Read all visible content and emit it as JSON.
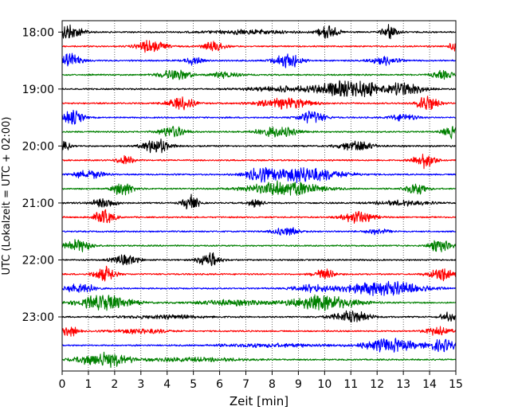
{
  "chart_data": {
    "type": "line",
    "title": "",
    "xlabel": "Zeit  [min]",
    "ylabel": "UTC (Lokalzeit = UTC + 02:00)",
    "xlim": [
      0,
      15
    ],
    "x_ticks": [
      "0",
      "1",
      "2",
      "3",
      "4",
      "5",
      "6",
      "7",
      "8",
      "9",
      "10",
      "11",
      "12",
      "13",
      "14",
      "15"
    ],
    "y_ticks": [
      "18:00",
      "19:00",
      "20:00",
      "21:00",
      "22:00",
      "23:00"
    ],
    "grid": "vertical dotted",
    "line_colors": [
      "#000000",
      "#ff0000",
      "#0000ff",
      "#008000"
    ],
    "series": [
      {
        "start": "18:00",
        "color": "#000000",
        "events": [
          [
            0.3,
            0.9,
            0.5
          ],
          [
            10.1,
            0.8,
            0.4
          ],
          [
            12.5,
            0.9,
            0.3
          ],
          [
            7.0,
            0.25,
            1.5
          ]
        ]
      },
      {
        "start": "18:15",
        "color": "#ff0000",
        "events": [
          [
            3.4,
            0.8,
            0.5
          ],
          [
            5.8,
            0.6,
            0.4
          ],
          [
            15.0,
            0.9,
            0.2
          ]
        ]
      },
      {
        "start": "18:30",
        "color": "#0000ff",
        "events": [
          [
            0.3,
            0.9,
            0.4
          ],
          [
            5.0,
            0.5,
            0.3
          ],
          [
            8.6,
            0.9,
            0.5
          ],
          [
            12.3,
            0.5,
            0.5
          ]
        ]
      },
      {
        "start": "18:45",
        "color": "#008000",
        "events": [
          [
            4.3,
            0.6,
            0.6
          ],
          [
            6.2,
            0.4,
            0.5
          ],
          [
            14.5,
            0.5,
            0.4
          ]
        ]
      },
      {
        "start": "19:00",
        "color": "#000000",
        "events": [
          [
            10.6,
            0.9,
            0.8
          ],
          [
            11.6,
            0.9,
            0.4
          ],
          [
            13.0,
            0.8,
            0.7
          ],
          [
            8.5,
            0.3,
            1.5
          ]
        ]
      },
      {
        "start": "19:15",
        "color": "#ff0000",
        "events": [
          [
            4.5,
            0.8,
            0.5
          ],
          [
            8.5,
            0.6,
            1.0
          ],
          [
            13.9,
            0.9,
            0.4
          ]
        ]
      },
      {
        "start": "19:30",
        "color": "#0000ff",
        "events": [
          [
            0.4,
            0.8,
            0.4
          ],
          [
            9.5,
            0.7,
            0.5
          ],
          [
            13.0,
            0.4,
            0.5
          ]
        ]
      },
      {
        "start": "19:45",
        "color": "#008000",
        "events": [
          [
            4.2,
            0.6,
            0.5
          ],
          [
            8.2,
            0.6,
            0.8
          ],
          [
            14.8,
            0.7,
            0.3
          ]
        ]
      },
      {
        "start": "20:00",
        "color": "#000000",
        "events": [
          [
            3.6,
            0.9,
            0.5
          ],
          [
            11.2,
            0.7,
            0.6
          ],
          [
            0.1,
            0.6,
            0.2
          ]
        ]
      },
      {
        "start": "20:15",
        "color": "#ff0000",
        "events": [
          [
            2.4,
            0.6,
            0.3
          ],
          [
            13.8,
            0.9,
            0.4
          ]
        ]
      },
      {
        "start": "20:30",
        "color": "#0000ff",
        "events": [
          [
            9.2,
            0.9,
            1.4
          ],
          [
            7.5,
            0.6,
            0.5
          ],
          [
            1.0,
            0.5,
            0.6
          ]
        ]
      },
      {
        "start": "20:45",
        "color": "#008000",
        "events": [
          [
            8.5,
            0.9,
            1.3
          ],
          [
            2.3,
            0.8,
            0.4
          ],
          [
            13.5,
            0.7,
            0.4
          ]
        ]
      },
      {
        "start": "21:00",
        "color": "#000000",
        "events": [
          [
            4.9,
            0.9,
            0.3
          ],
          [
            1.6,
            0.5,
            0.5
          ],
          [
            7.4,
            0.5,
            0.3
          ],
          [
            13.0,
            0.3,
            1.0
          ]
        ]
      },
      {
        "start": "21:15",
        "color": "#ff0000",
        "events": [
          [
            1.6,
            0.8,
            0.4
          ],
          [
            11.3,
            0.7,
            0.6
          ]
        ]
      },
      {
        "start": "21:30",
        "color": "#0000ff",
        "events": [
          [
            8.6,
            0.5,
            0.5
          ],
          [
            12.0,
            0.3,
            0.5
          ]
        ]
      },
      {
        "start": "21:45",
        "color": "#008000",
        "events": [
          [
            0.6,
            0.7,
            0.5
          ],
          [
            14.4,
            0.8,
            0.4
          ]
        ]
      },
      {
        "start": "22:00",
        "color": "#000000",
        "events": [
          [
            2.4,
            0.6,
            0.5
          ],
          [
            5.6,
            0.9,
            0.4
          ]
        ]
      },
      {
        "start": "22:15",
        "color": "#ff0000",
        "events": [
          [
            1.6,
            0.9,
            0.4
          ],
          [
            10.0,
            0.6,
            0.4
          ],
          [
            14.5,
            0.8,
            0.5
          ]
        ]
      },
      {
        "start": "22:30",
        "color": "#0000ff",
        "events": [
          [
            0.7,
            0.7,
            0.5
          ],
          [
            12.2,
            0.9,
            1.4
          ],
          [
            9.5,
            0.4,
            0.7
          ]
        ]
      },
      {
        "start": "22:45",
        "color": "#008000",
        "events": [
          [
            1.6,
            0.9,
            1.0
          ],
          [
            10.0,
            0.9,
            1.2
          ],
          [
            6.5,
            0.3,
            1.5
          ]
        ]
      },
      {
        "start": "23:00",
        "color": "#000000",
        "events": [
          [
            11.0,
            0.7,
            0.7
          ],
          [
            14.7,
            0.5,
            0.3
          ],
          [
            4.0,
            0.2,
            1.5
          ]
        ]
      },
      {
        "start": "23:15",
        "color": "#ff0000",
        "events": [
          [
            0.3,
            0.6,
            0.3
          ],
          [
            14.3,
            0.5,
            0.5
          ],
          [
            3.0,
            0.3,
            1.0
          ]
        ]
      },
      {
        "start": "23:30",
        "color": "#0000ff",
        "events": [
          [
            12.5,
            0.8,
            1.0
          ],
          [
            14.5,
            0.7,
            0.5
          ],
          [
            8.0,
            0.2,
            2.0
          ]
        ]
      },
      {
        "start": "23:45",
        "color": "#008000",
        "events": [
          [
            1.6,
            0.9,
            0.9
          ],
          [
            5.0,
            0.2,
            2.0
          ]
        ]
      }
    ]
  }
}
